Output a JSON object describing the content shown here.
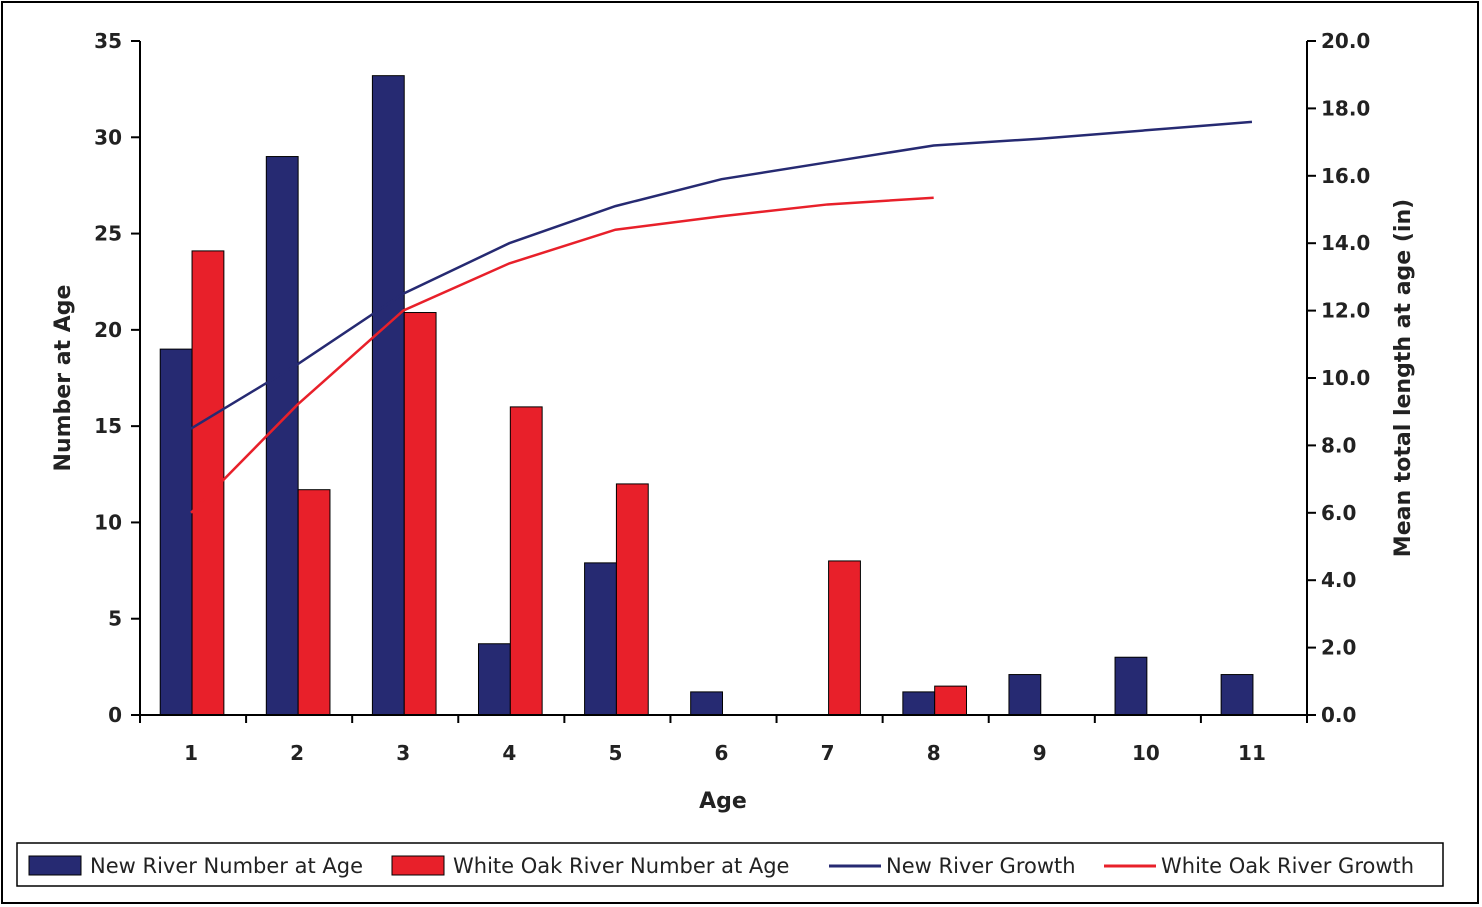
{
  "chart_data": {
    "type": "bar",
    "categories": [
      "1",
      "2",
      "3",
      "4",
      "5",
      "6",
      "7",
      "8",
      "9",
      "10",
      "11"
    ],
    "series": [
      {
        "name": "New River Number at Age",
        "kind": "bar",
        "axis": "left",
        "color": "#262a72",
        "values": [
          19,
          29,
          33.2,
          3.7,
          7.9,
          1.2,
          0,
          1.2,
          2.1,
          3,
          2.1
        ]
      },
      {
        "name": "White Oak River Number at Age",
        "kind": "bar",
        "axis": "left",
        "color": "#e8202a",
        "values": [
          24.1,
          11.7,
          20.9,
          16,
          12,
          0,
          8,
          1.5,
          0,
          0,
          0
        ]
      },
      {
        "name": "New River Growth",
        "kind": "line",
        "axis": "right",
        "color": "#262a72",
        "values": [
          8.5,
          10.4,
          12.5,
          14.0,
          15.1,
          15.9,
          16.4,
          16.9,
          17.1,
          17.35,
          17.6
        ]
      },
      {
        "name": "White Oak River Growth",
        "kind": "line",
        "axis": "right",
        "color": "#e8202a",
        "values": [
          6.0,
          9.2,
          12.0,
          13.4,
          14.4,
          14.8,
          15.15,
          15.35,
          null,
          null,
          null
        ]
      }
    ],
    "xlabel": "Age",
    "ylabel": "Number at Age",
    "y2label": "Mean total length at age (in)",
    "ylim": [
      0,
      35
    ],
    "y2lim": [
      0,
      20
    ],
    "yticks": [
      "0",
      "5",
      "10",
      "15",
      "20",
      "25",
      "30",
      "35"
    ],
    "y2ticks": [
      "0.0",
      "2.0",
      "4.0",
      "6.0",
      "8.0",
      "10.0",
      "12.0",
      "14.0",
      "16.0",
      "18.0",
      "20.0"
    ],
    "legend_position": "bottom",
    "grid": false
  }
}
